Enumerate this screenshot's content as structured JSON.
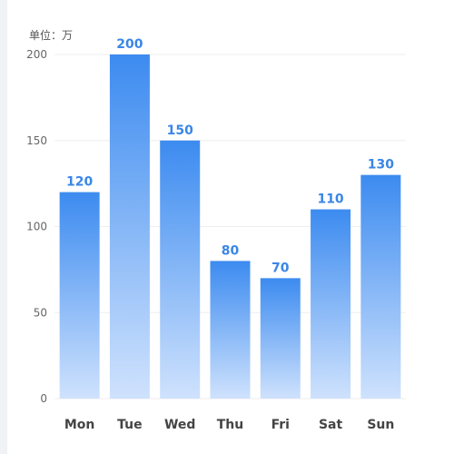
{
  "chart_data": {
    "type": "bar",
    "unit_label": "单位：万",
    "categories": [
      "Mon",
      "Tue",
      "Wed",
      "Thu",
      "Fri",
      "Sat",
      "Sun"
    ],
    "values": [
      120,
      200,
      150,
      80,
      70,
      110,
      130
    ],
    "yticks": [
      "0",
      "50",
      "100",
      "150",
      "200"
    ],
    "ylim": [
      0,
      200
    ],
    "grid": true,
    "colors": {
      "bar_top": "#3c8bf0",
      "bar_bottom": "#cfe2fd",
      "value_label": "#3a86e6",
      "category_label": "#444444",
      "tick_label": "#666666",
      "grid": "#eeeeee"
    }
  }
}
